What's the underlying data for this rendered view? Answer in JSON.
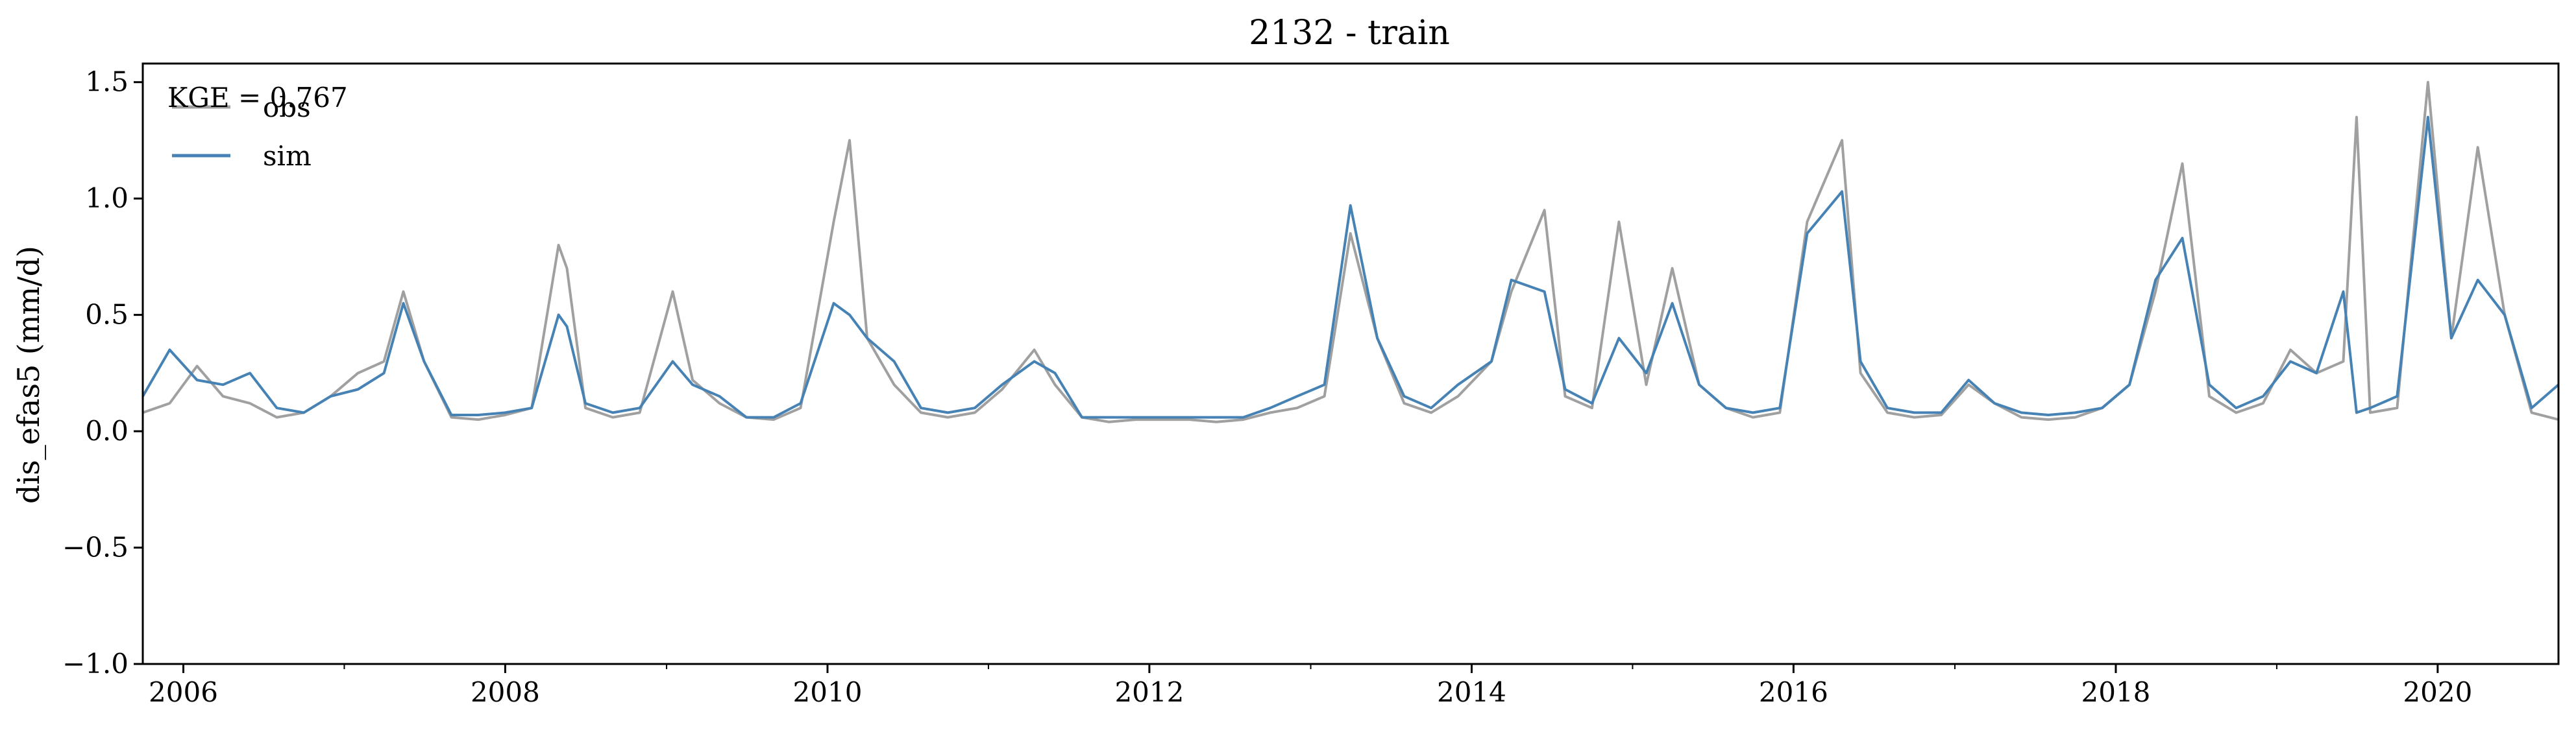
{
  "chart_data": {
    "type": "line",
    "title": "2132 - train",
    "xlabel": "",
    "ylabel": "dis_efas5 (mm/d)",
    "xlim": [
      "2005-10-01",
      "2020-10-01"
    ],
    "ylim": [
      -1.0,
      1.58
    ],
    "x_ticks": [
      "2006",
      "2008",
      "2010",
      "2012",
      "2014",
      "2016",
      "2018",
      "2020"
    ],
    "y_ticks": [
      "−1.0",
      "−0.5",
      "0.0",
      "0.5",
      "1.0",
      "1.5"
    ],
    "grid": false,
    "legend_position": "top-left",
    "annotation": "KGE = 0.767",
    "series": [
      {
        "name": "obs",
        "color": "#a0a0a0",
        "x": [
          "2005-10-01",
          "2005-12-01",
          "2006-02-01",
          "2006-04-01",
          "2006-06-01",
          "2006-08-01",
          "2006-10-01",
          "2006-12-01",
          "2007-02-01",
          "2007-04-01",
          "2007-05-15",
          "2007-07-01",
          "2007-09-01",
          "2007-11-01",
          "2008-01-01",
          "2008-03-01",
          "2008-05-01",
          "2008-05-20",
          "2008-07-01",
          "2008-09-01",
          "2008-11-01",
          "2009-01-15",
          "2009-03-01",
          "2009-05-01",
          "2009-07-01",
          "2009-09-01",
          "2009-11-01",
          "2010-01-15",
          "2010-02-20",
          "2010-04-01",
          "2010-06-01",
          "2010-08-01",
          "2010-10-01",
          "2010-12-01",
          "2011-02-01",
          "2011-04-15",
          "2011-06-01",
          "2011-08-01",
          "2011-10-01",
          "2011-12-01",
          "2012-02-01",
          "2012-04-01",
          "2012-06-01",
          "2012-08-01",
          "2012-10-01",
          "2012-12-01",
          "2013-02-01",
          "2013-04-01",
          "2013-06-01",
          "2013-08-01",
          "2013-10-01",
          "2013-12-01",
          "2014-02-15",
          "2014-04-01",
          "2014-06-15",
          "2014-08-01",
          "2014-10-01",
          "2014-12-01",
          "2015-02-01",
          "2015-04-01",
          "2015-06-01",
          "2015-08-01",
          "2015-10-01",
          "2015-12-01",
          "2016-02-01",
          "2016-04-20",
          "2016-06-01",
          "2016-08-01",
          "2016-10-01",
          "2016-12-01",
          "2017-02-01",
          "2017-04-01",
          "2017-06-01",
          "2017-08-01",
          "2017-10-01",
          "2017-12-01",
          "2018-02-01",
          "2018-04-01",
          "2018-06-01",
          "2018-08-01",
          "2018-10-01",
          "2018-12-01",
          "2019-02-01",
          "2019-04-01",
          "2019-06-01",
          "2019-07-01",
          "2019-08-01",
          "2019-10-01",
          "2019-12-10",
          "2020-02-01",
          "2020-04-01",
          "2020-06-01",
          "2020-08-01",
          "2020-10-01"
        ],
        "values": [
          0.08,
          0.12,
          0.28,
          0.15,
          0.12,
          0.06,
          0.08,
          0.15,
          0.25,
          0.3,
          0.6,
          0.3,
          0.06,
          0.05,
          0.07,
          0.1,
          0.8,
          0.7,
          0.1,
          0.06,
          0.08,
          0.6,
          0.22,
          0.12,
          0.06,
          0.05,
          0.1,
          0.9,
          1.25,
          0.4,
          0.2,
          0.08,
          0.06,
          0.08,
          0.18,
          0.35,
          0.2,
          0.06,
          0.04,
          0.05,
          0.05,
          0.05,
          0.04,
          0.05,
          0.08,
          0.1,
          0.15,
          0.85,
          0.4,
          0.12,
          0.08,
          0.15,
          0.3,
          0.6,
          0.95,
          0.15,
          0.1,
          0.9,
          0.2,
          0.7,
          0.2,
          0.1,
          0.06,
          0.08,
          0.9,
          1.25,
          0.25,
          0.08,
          0.06,
          0.07,
          0.2,
          0.12,
          0.06,
          0.05,
          0.06,
          0.1,
          0.2,
          0.6,
          1.15,
          0.15,
          0.08,
          0.12,
          0.35,
          0.25,
          0.3,
          1.35,
          0.08,
          0.1,
          1.5,
          0.4,
          1.22,
          0.5,
          0.08,
          0.05
        ]
      },
      {
        "name": "sim",
        "color": "#4682b4",
        "x": [
          "2005-10-01",
          "2005-12-01",
          "2006-02-01",
          "2006-04-01",
          "2006-06-01",
          "2006-08-01",
          "2006-10-01",
          "2006-12-01",
          "2007-02-01",
          "2007-04-01",
          "2007-05-15",
          "2007-07-01",
          "2007-09-01",
          "2007-11-01",
          "2008-01-01",
          "2008-03-01",
          "2008-05-01",
          "2008-05-20",
          "2008-07-01",
          "2008-09-01",
          "2008-11-01",
          "2009-01-15",
          "2009-03-01",
          "2009-05-01",
          "2009-07-01",
          "2009-09-01",
          "2009-11-01",
          "2010-01-15",
          "2010-02-20",
          "2010-04-01",
          "2010-06-01",
          "2010-08-01",
          "2010-10-01",
          "2010-12-01",
          "2011-02-01",
          "2011-04-15",
          "2011-06-01",
          "2011-08-01",
          "2011-10-01",
          "2011-12-01",
          "2012-02-01",
          "2012-04-01",
          "2012-06-01",
          "2012-08-01",
          "2012-10-01",
          "2012-12-01",
          "2013-02-01",
          "2013-04-01",
          "2013-06-01",
          "2013-08-01",
          "2013-10-01",
          "2013-12-01",
          "2014-02-15",
          "2014-04-01",
          "2014-06-15",
          "2014-08-01",
          "2014-10-01",
          "2014-12-01",
          "2015-02-01",
          "2015-04-01",
          "2015-06-01",
          "2015-08-01",
          "2015-10-01",
          "2015-12-01",
          "2016-02-01",
          "2016-04-20",
          "2016-06-01",
          "2016-08-01",
          "2016-10-01",
          "2016-12-01",
          "2017-02-01",
          "2017-04-01",
          "2017-06-01",
          "2017-08-01",
          "2017-10-01",
          "2017-12-01",
          "2018-02-01",
          "2018-04-01",
          "2018-06-01",
          "2018-08-01",
          "2018-10-01",
          "2018-12-01",
          "2019-02-01",
          "2019-04-01",
          "2019-06-01",
          "2019-07-01",
          "2019-08-01",
          "2019-10-01",
          "2019-12-10",
          "2020-02-01",
          "2020-04-01",
          "2020-06-01",
          "2020-08-01",
          "2020-10-01"
        ],
        "values": [
          0.15,
          0.35,
          0.22,
          0.2,
          0.25,
          0.1,
          0.08,
          0.15,
          0.18,
          0.25,
          0.55,
          0.3,
          0.07,
          0.07,
          0.08,
          0.1,
          0.5,
          0.45,
          0.12,
          0.08,
          0.1,
          0.3,
          0.2,
          0.15,
          0.06,
          0.06,
          0.12,
          0.55,
          0.5,
          0.4,
          0.3,
          0.1,
          0.08,
          0.1,
          0.2,
          0.3,
          0.25,
          0.06,
          0.06,
          0.06,
          0.06,
          0.06,
          0.06,
          0.06,
          0.1,
          0.15,
          0.2,
          0.97,
          0.4,
          0.15,
          0.1,
          0.2,
          0.3,
          0.65,
          0.6,
          0.18,
          0.12,
          0.4,
          0.25,
          0.55,
          0.2,
          0.1,
          0.08,
          0.1,
          0.85,
          1.03,
          0.3,
          0.1,
          0.08,
          0.08,
          0.22,
          0.12,
          0.08,
          0.07,
          0.08,
          0.1,
          0.2,
          0.65,
          0.83,
          0.2,
          0.1,
          0.15,
          0.3,
          0.25,
          0.6,
          0.08,
          0.1,
          0.15,
          1.35,
          0.4,
          0.65,
          0.5,
          0.1,
          0.2
        ]
      }
    ]
  }
}
